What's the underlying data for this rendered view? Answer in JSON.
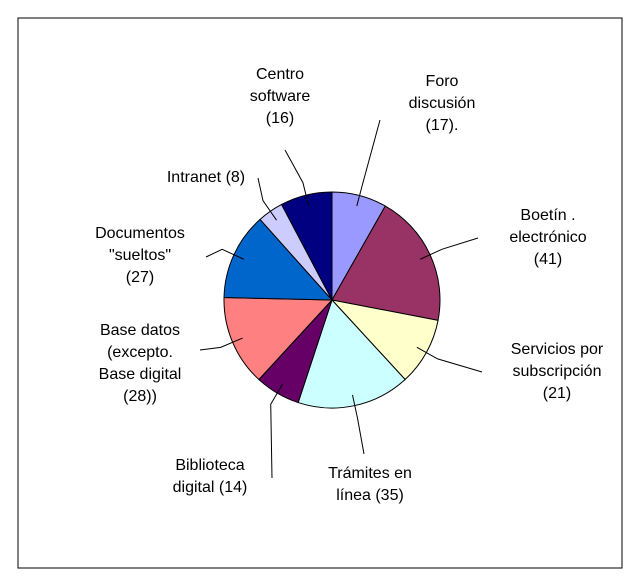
{
  "chart_data": {
    "type": "pie",
    "categories": [
      [
        "Foro",
        "discusión"
      ],
      [
        "Boetín .",
        "electrónico"
      ],
      [
        "Servicios por",
        "subscripción"
      ],
      [
        "Trámites en",
        "línea"
      ],
      [
        "Biblioteca",
        "digital"
      ],
      [
        "Base  datos",
        "(excepto.",
        "Base digital"
      ],
      [
        "Documentos",
        "\"sueltos\""
      ],
      [
        "Intranet"
      ],
      [
        "Centro",
        "software"
      ]
    ],
    "values": [
      17,
      41,
      21,
      35,
      14,
      28,
      27,
      8,
      16
    ],
    "value_labels": [
      "(17).",
      "(41)",
      "(21)",
      "(35)",
      "(14)",
      "(28))",
      "(27)",
      "(8)",
      "(16)"
    ],
    "colors": [
      "#9999ff",
      "#993366",
      "#ffffcc",
      "#ccffff",
      "#660066",
      "#ff8080",
      "#0066cc",
      "#ccccff",
      "#000080"
    ]
  }
}
